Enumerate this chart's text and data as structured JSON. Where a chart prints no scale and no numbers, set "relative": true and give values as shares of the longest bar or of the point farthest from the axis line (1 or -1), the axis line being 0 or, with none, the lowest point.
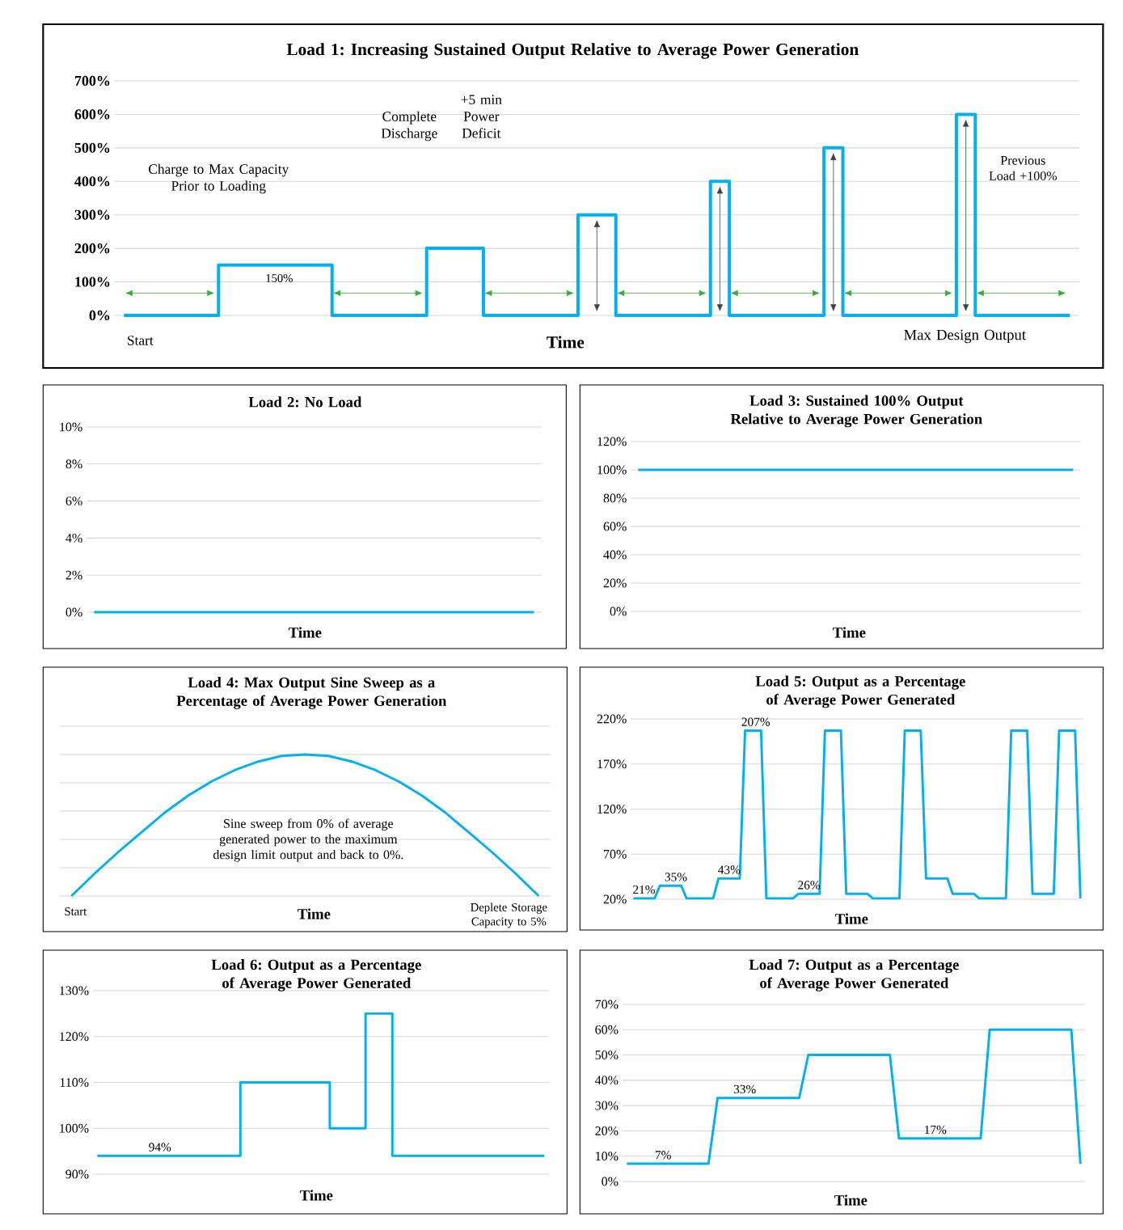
{
  "chart_data": [
    {
      "type": "step",
      "title": "Load 1: Increasing Sustained Output Relative to Average Power Generation",
      "xlabel": "Time",
      "color": "#00b0f0",
      "grid": "y",
      "categories": [
        null,
        null,
        null,
        null,
        null,
        null,
        null,
        null,
        null,
        null,
        null,
        null,
        null,
        null,
        null,
        null,
        null,
        null,
        null,
        null,
        null,
        null,
        null,
        null,
        null,
        null,
        null,
        null,
        null,
        null,
        null,
        null,
        null,
        null,
        null,
        null,
        null,
        null,
        null,
        null,
        null,
        null,
        null,
        null,
        null,
        null,
        null,
        null,
        null,
        null,
        null
      ],
      "values": [
        0,
        0,
        0,
        0,
        0,
        150,
        150,
        150,
        150,
        150,
        150,
        0,
        0,
        0,
        0,
        0,
        200,
        200,
        200,
        0,
        0,
        0,
        0,
        0,
        300,
        300,
        0,
        0,
        0,
        0,
        0,
        400,
        0,
        0,
        0,
        0,
        0,
        500,
        0,
        0,
        0,
        0,
        0,
        0,
        600,
        0,
        0,
        0,
        0,
        0,
        0
      ],
      "ylim": [
        0,
        700
      ],
      "yticks": [
        {
          "value": 0,
          "label": "0%"
        },
        {
          "value": 100,
          "label": "100%"
        },
        {
          "value": 200,
          "label": "200%"
        },
        {
          "value": 300,
          "label": "300%"
        },
        {
          "value": 400,
          "label": "400%"
        },
        {
          "value": 500,
          "label": "500%"
        },
        {
          "value": 600,
          "label": "600%"
        },
        {
          "value": 700,
          "label": "700%"
        }
      ],
      "annotations": [
        "Charge to Max Capacity Prior to Loading",
        "150%",
        "Complete Discharge",
        "+5 min Power Deficit",
        "Previous Load +100%",
        "Start",
        "Max Design Output"
      ]
    },
    {
      "type": "line",
      "title": "Load 2: No Load",
      "xlabel": "Time",
      "color": "#00b0f0",
      "grid": "y",
      "categories": [
        null,
        null,
        null,
        null,
        null,
        null,
        null,
        null,
        null,
        null,
        null,
        null,
        null,
        null,
        null,
        null,
        null,
        null,
        null,
        null,
        null,
        null,
        null,
        null,
        null,
        null,
        null,
        null,
        null,
        null
      ],
      "values": [
        0,
        0,
        0,
        0,
        0,
        0,
        0,
        0,
        0,
        0,
        0,
        0,
        0,
        0,
        0,
        0,
        0,
        0,
        0,
        0,
        0,
        0,
        0,
        0,
        0,
        0,
        0,
        0,
        0,
        0
      ],
      "ylim": [
        0,
        10
      ],
      "yticks": [
        {
          "value": 0,
          "label": "0%"
        },
        {
          "value": 2,
          "label": "2%"
        },
        {
          "value": 4,
          "label": "4%"
        },
        {
          "value": 6,
          "label": "6%"
        },
        {
          "value": 8,
          "label": "8%"
        },
        {
          "value": 10,
          "label": "10%"
        }
      ]
    },
    {
      "type": "line",
      "title": "Load 3:  Sustained 100% Output Relative to Average Power Generation",
      "xlabel": "Time",
      "color": "#00b0f0",
      "grid": "y",
      "categories": [
        null,
        null,
        null,
        null,
        null,
        null,
        null,
        null,
        null,
        null,
        null,
        null,
        null,
        null,
        null,
        null,
        null,
        null,
        null,
        null,
        null,
        null,
        null,
        null,
        null,
        null,
        null,
        null,
        null,
        null
      ],
      "values": [
        100,
        100,
        100,
        100,
        100,
        100,
        100,
        100,
        100,
        100,
        100,
        100,
        100,
        100,
        100,
        100,
        100,
        100,
        100,
        100,
        100,
        100,
        100,
        100,
        100,
        100,
        100,
        100,
        100,
        100
      ],
      "ylim": [
        0,
        120
      ],
      "yticks": [
        {
          "value": 0,
          "label": "0%"
        },
        {
          "value": 20,
          "label": "20%"
        },
        {
          "value": 40,
          "label": "40%"
        },
        {
          "value": 60,
          "label": "60%"
        },
        {
          "value": 80,
          "label": "80%"
        },
        {
          "value": 100,
          "label": "100%"
        },
        {
          "value": 120,
          "label": "120%"
        }
      ]
    },
    {
      "type": "line",
      "title": "Load 4: Max Output Sine Sweep as a Percentage of Average Power Generation",
      "xlabel": "Time",
      "color": "#00b0f0",
      "grid": "y",
      "relative": true,
      "categories": [
        null,
        null,
        null,
        null,
        null,
        null,
        null,
        null,
        null,
        null,
        null,
        null,
        null,
        null,
        null,
        null,
        null,
        null,
        null,
        null,
        null
      ],
      "values": [
        0,
        0.16,
        0.31,
        0.45,
        0.59,
        0.71,
        0.81,
        0.89,
        0.95,
        0.99,
        1,
        0.99,
        0.95,
        0.89,
        0.81,
        0.71,
        0.59,
        0.45,
        0.31,
        0.16,
        0
      ],
      "annotations": [
        "Sine sweep from 0% of average generated power to the maximum design limit output and back to 0%.",
        "Start",
        "Deplete Storage Capacity to 5%"
      ]
    },
    {
      "type": "line",
      "title": "Load 5: Output as a Percentage of Average Power Generated",
      "xlabel": "Time",
      "color": "#00b0f0",
      "grid": "y",
      "categories": [
        null,
        null,
        null,
        null,
        null,
        null,
        null,
        null,
        null,
        null,
        null,
        null,
        null,
        null,
        null,
        null,
        null,
        null,
        null,
        null,
        null,
        null,
        null,
        null,
        null,
        null,
        null,
        null,
        null,
        null,
        null,
        null,
        null,
        null,
        null,
        null,
        null,
        null,
        null,
        null,
        null,
        null,
        null,
        null,
        null,
        null,
        null,
        null,
        null,
        null,
        null,
        null,
        null,
        null,
        null,
        null,
        null,
        null,
        null,
        null,
        null,
        null,
        null,
        null,
        null,
        null,
        null,
        null,
        null,
        null,
        null,
        null,
        null,
        null,
        null,
        null,
        null,
        null,
        null,
        null,
        null,
        null,
        null,
        null,
        null
      ],
      "values": [
        21,
        21,
        21,
        21,
        21,
        35,
        35,
        35,
        35,
        35,
        21,
        21,
        21,
        21,
        21,
        21,
        43,
        43,
        43,
        43,
        43,
        207,
        207,
        207,
        207,
        21,
        21,
        21,
        21,
        21,
        21,
        26,
        26,
        26,
        26,
        26,
        207,
        207,
        207,
        207,
        26,
        26,
        26,
        26,
        26,
        21,
        21,
        21,
        21,
        21,
        21,
        207,
        207,
        207,
        207,
        43,
        43,
        43,
        43,
        43,
        26,
        26,
        26,
        26,
        26,
        21,
        21,
        21,
        21,
        21,
        21,
        207,
        207,
        207,
        207,
        26,
        26,
        26,
        26,
        26,
        207,
        207,
        207,
        207,
        21
      ],
      "value_labels": [
        null,
        null,
        "21%",
        null,
        null,
        null,
        null,
        null,
        "35%",
        null,
        null,
        null,
        null,
        null,
        null,
        null,
        null,
        null,
        "43%",
        null,
        null,
        null,
        null,
        "207%",
        null,
        null,
        null,
        null,
        null,
        null,
        null,
        null,
        null,
        "26%",
        null,
        null,
        null,
        null,
        null,
        null,
        null,
        null,
        null,
        null,
        null,
        null,
        null,
        null,
        null,
        null,
        null,
        null,
        null,
        null,
        null,
        null,
        null,
        null,
        null,
        null,
        null,
        null,
        null,
        null,
        null,
        null,
        null,
        null,
        null,
        null,
        null,
        null,
        null,
        null,
        null,
        null,
        null,
        null,
        null,
        null,
        null,
        null,
        null,
        null,
        null
      ],
      "ylim": [
        20,
        220
      ],
      "yticks": [
        {
          "value": 20,
          "label": "20%"
        },
        {
          "value": 70,
          "label": "70%"
        },
        {
          "value": 120,
          "label": "120%"
        },
        {
          "value": 170,
          "label": "170%"
        },
        {
          "value": 220,
          "label": "220%"
        }
      ]
    },
    {
      "type": "step",
      "title": "Load 6: Output as a Percentage of Average Power Generated",
      "xlabel": "Time",
      "color": "#00b0f0",
      "grid": "y",
      "categories": [
        null,
        null,
        null,
        null,
        null,
        null,
        null,
        null,
        null,
        null,
        null,
        null,
        null,
        null,
        null,
        null,
        null,
        null,
        null,
        null,
        null,
        null,
        null,
        null,
        null,
        null,
        null,
        null,
        null,
        null,
        null,
        null,
        null,
        null,
        null,
        null,
        null,
        null,
        null,
        null,
        null,
        null,
        null,
        null,
        null,
        null,
        null,
        null,
        null,
        null,
        null
      ],
      "values": [
        94,
        94,
        94,
        94,
        94,
        94,
        94,
        94,
        94,
        94,
        94,
        94,
        94,
        94,
        94,
        94,
        110,
        110,
        110,
        110,
        110,
        110,
        110,
        110,
        110,
        110,
        100,
        100,
        100,
        100,
        125,
        125,
        125,
        94,
        94,
        94,
        94,
        94,
        94,
        94,
        94,
        94,
        94,
        94,
        94,
        94,
        94,
        94,
        94,
        94,
        94
      ],
      "value_labels": [
        null,
        null,
        null,
        null,
        null,
        null,
        null,
        "94%",
        null,
        null,
        null,
        null,
        null,
        null,
        null,
        null,
        null,
        null,
        null,
        null,
        null,
        null,
        null,
        null,
        null,
        null,
        null,
        null,
        null,
        null,
        null,
        null,
        null,
        null,
        null,
        null,
        null,
        null,
        null,
        null,
        null,
        null,
        null,
        null,
        null,
        null,
        null,
        null,
        null,
        null,
        null
      ],
      "ylim": [
        90,
        130
      ],
      "yticks": [
        {
          "value": 90,
          "label": "90%"
        },
        {
          "value": 100,
          "label": "100%"
        },
        {
          "value": 110,
          "label": "110%"
        },
        {
          "value": 120,
          "label": "120%"
        },
        {
          "value": 130,
          "label": "130%"
        }
      ]
    },
    {
      "type": "line",
      "title": "Load 7: Output as a Percentage of Average Power Generated",
      "xlabel": "Time",
      "color": "#00b0f0",
      "grid": "y",
      "categories": [
        null,
        null,
        null,
        null,
        null,
        null,
        null,
        null,
        null,
        null,
        null,
        null,
        null,
        null,
        null,
        null,
        null,
        null,
        null,
        null,
        null,
        null,
        null,
        null,
        null,
        null,
        null,
        null,
        null,
        null,
        null,
        null,
        null,
        null,
        null,
        null,
        null,
        null,
        null,
        null,
        null,
        null,
        null,
        null,
        null,
        null,
        null,
        null,
        null,
        null,
        null
      ],
      "values": [
        7,
        7,
        7,
        7,
        7,
        7,
        7,
        7,
        7,
        7,
        33,
        33,
        33,
        33,
        33,
        33,
        33,
        33,
        33,
        33,
        50,
        50,
        50,
        50,
        50,
        50,
        50,
        50,
        50,
        50,
        17,
        17,
        17,
        17,
        17,
        17,
        17,
        17,
        17,
        17,
        60,
        60,
        60,
        60,
        60,
        60,
        60,
        60,
        60,
        60,
        7
      ],
      "value_labels": [
        null,
        null,
        null,
        null,
        "7%",
        null,
        null,
        null,
        null,
        null,
        null,
        null,
        null,
        "33%",
        null,
        null,
        null,
        null,
        null,
        null,
        null,
        null,
        null,
        null,
        null,
        null,
        null,
        null,
        null,
        null,
        null,
        null,
        null,
        null,
        "17%",
        null,
        null,
        null,
        null,
        null,
        null,
        null,
        null,
        null,
        null,
        null,
        null,
        null,
        null,
        null,
        null
      ],
      "ylim": [
        0,
        70
      ],
      "yticks": [
        {
          "value": 0,
          "label": "0%"
        },
        {
          "value": 10,
          "label": "10%"
        },
        {
          "value": 20,
          "label": "20%"
        },
        {
          "value": 30,
          "label": "30%"
        },
        {
          "value": 40,
          "label": "40%"
        },
        {
          "value": 50,
          "label": "50%"
        },
        {
          "value": 60,
          "label": "60%"
        },
        {
          "value": 70,
          "label": "70%"
        }
      ]
    }
  ]
}
